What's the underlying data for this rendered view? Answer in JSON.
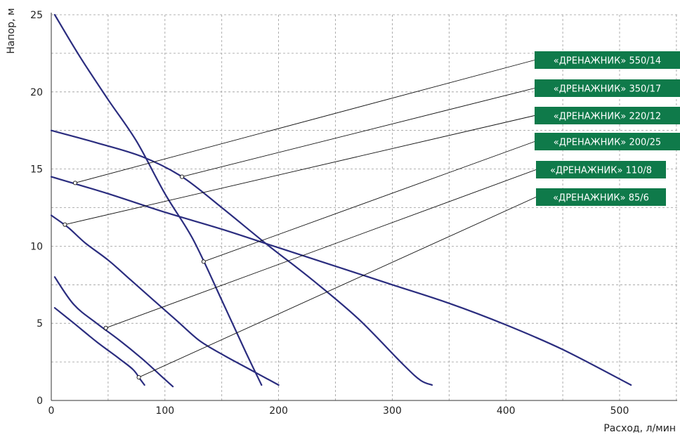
{
  "chart_data": {
    "type": "line",
    "xlabel": "Расход, л/мин",
    "ylabel": "Напор, м",
    "xlim": [
      0,
      550
    ],
    "ylim": [
      0,
      25
    ],
    "x_ticks": [
      0,
      100,
      200,
      300,
      400,
      500
    ],
    "y_ticks": [
      0,
      5,
      10,
      15,
      20,
      25
    ],
    "x_minor_grid": [
      50,
      150,
      250,
      350,
      450,
      550
    ],
    "y_minor_grid": [
      2.5,
      7.5,
      12.5,
      17.5,
      22.5
    ],
    "grid": true,
    "legend": "right-callouts",
    "colors": {
      "curve": "#2b2d7f",
      "label_bg": "#0f7a4a",
      "label_text": "#ffffff",
      "leader": "#111111"
    },
    "series": [
      {
        "name": "«ДРЕНАЖНИК» 550/14",
        "marker": [
          21,
          14.1
        ],
        "points": [
          [
            0,
            14.5
          ],
          [
            50,
            13.4
          ],
          [
            100,
            12.2
          ],
          [
            150,
            11.1
          ],
          [
            200,
            9.9
          ],
          [
            250,
            8.7
          ],
          [
            300,
            7.5
          ],
          [
            350,
            6.3
          ],
          [
            400,
            4.9
          ],
          [
            450,
            3.3
          ],
          [
            510,
            1.0
          ]
        ]
      },
      {
        "name": "«ДРЕНАЖНИК» 350/17",
        "marker": [
          115,
          14.5
        ],
        "points": [
          [
            0,
            17.5
          ],
          [
            40,
            16.7
          ],
          [
            80,
            15.8
          ],
          [
            115,
            14.5
          ],
          [
            150,
            12.5
          ],
          [
            190,
            10.1
          ],
          [
            230,
            7.8
          ],
          [
            270,
            5.3
          ],
          [
            310,
            2.3
          ],
          [
            325,
            1.3
          ],
          [
            335,
            1.0
          ]
        ]
      },
      {
        "name": "«ДРЕНАЖНИК» 220/12",
        "marker": [
          12,
          11.4
        ],
        "points": [
          [
            0,
            12.0
          ],
          [
            15,
            11.2
          ],
          [
            30,
            10.2
          ],
          [
            50,
            9.1
          ],
          [
            70,
            7.8
          ],
          [
            90,
            6.5
          ],
          [
            110,
            5.2
          ],
          [
            130,
            3.9
          ],
          [
            150,
            3.0
          ],
          [
            175,
            2.0
          ],
          [
            200,
            1.0
          ]
        ]
      },
      {
        "name": "«ДРЕНАЖНИК» 200/25",
        "marker": [
          134,
          9.0
        ],
        "points": [
          [
            3,
            25.0
          ],
          [
            25,
            22.3
          ],
          [
            50,
            19.5
          ],
          [
            75,
            16.8
          ],
          [
            100,
            13.4
          ],
          [
            125,
            10.4
          ],
          [
            150,
            6.5
          ],
          [
            170,
            3.3
          ],
          [
            185,
            1.0
          ]
        ]
      },
      {
        "name": "«ДРЕНАЖНИК» 110/8",
        "marker": [
          48,
          4.7
        ],
        "points": [
          [
            3,
            8.0
          ],
          [
            20,
            6.2
          ],
          [
            40,
            5.0
          ],
          [
            60,
            3.9
          ],
          [
            80,
            2.7
          ],
          [
            95,
            1.7
          ],
          [
            107,
            0.9
          ]
        ]
      },
      {
        "name": "«ДРЕНАЖНИК» 85/6",
        "marker": [
          77,
          1.5
        ],
        "points": [
          [
            3,
            6.0
          ],
          [
            20,
            5.0
          ],
          [
            40,
            3.8
          ],
          [
            60,
            2.7
          ],
          [
            72,
            2.0
          ],
          [
            78,
            1.4
          ],
          [
            82,
            1.0
          ]
        ]
      }
    ]
  }
}
